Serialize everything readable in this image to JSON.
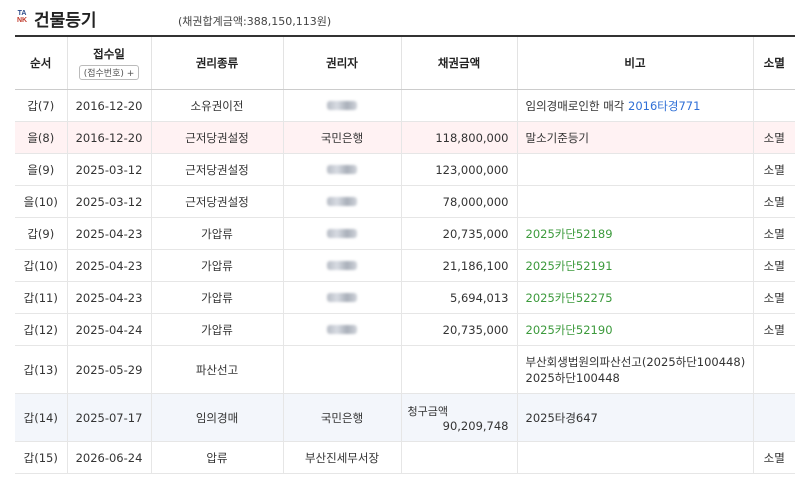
{
  "header": {
    "logo_line1": "TA",
    "logo_line2": "NK",
    "title": "건물등기",
    "total": "(채권합계금액:388,150,113원)"
  },
  "columns": {
    "order": "순서",
    "date": "접수일",
    "date_sub": "(접수번호) +",
    "kind": "권리종류",
    "holder": "권리자",
    "amount": "채권금액",
    "note": "비고",
    "status": "소멸"
  },
  "rows": [
    {
      "order": "갑(7)",
      "date": "2016-12-20",
      "kind": "소유권이전",
      "holder": "",
      "holder_blurred": true,
      "amount": "",
      "note_prefix": "임의경매로인한 매각 ",
      "note_link": "2016타경771",
      "link_color": "blue",
      "status": ""
    },
    {
      "order": "을(8)",
      "date": "2016-12-20",
      "kind": "근저당권설정",
      "holder": "국민은행",
      "holder_blurred": false,
      "amount": "118,800,000",
      "note_prefix": "말소기준등기",
      "note_link": "",
      "link_color": "",
      "status": "소멸"
    },
    {
      "order": "을(9)",
      "date": "2025-03-12",
      "kind": "근저당권설정",
      "holder": "",
      "holder_blurred": true,
      "amount": "123,000,000",
      "note_prefix": "",
      "note_link": "",
      "link_color": "",
      "status": "소멸"
    },
    {
      "order": "을(10)",
      "date": "2025-03-12",
      "kind": "근저당권설정",
      "holder": "",
      "holder_blurred": true,
      "amount": "78,000,000",
      "note_prefix": "",
      "note_link": "",
      "link_color": "",
      "status": "소멸"
    },
    {
      "order": "갑(9)",
      "date": "2025-04-23",
      "kind": "가압류",
      "holder": "",
      "holder_blurred": true,
      "amount": "20,735,000",
      "note_prefix": "",
      "note_link": "2025카단52189",
      "link_color": "green",
      "status": "소멸"
    },
    {
      "order": "갑(10)",
      "date": "2025-04-23",
      "kind": "가압류",
      "holder": "",
      "holder_blurred": true,
      "amount": "21,186,100",
      "note_prefix": "",
      "note_link": "2025카단52191",
      "link_color": "green",
      "status": "소멸"
    },
    {
      "order": "갑(11)",
      "date": "2025-04-23",
      "kind": "가압류",
      "holder": "",
      "holder_blurred": true,
      "amount": "5,694,013",
      "note_prefix": "",
      "note_link": "2025카단52275",
      "link_color": "green",
      "status": "소멸"
    },
    {
      "order": "갑(12)",
      "date": "2025-04-24",
      "kind": "가압류",
      "holder": "",
      "holder_blurred": true,
      "amount": "20,735,000",
      "note_prefix": "",
      "note_link": "2025카단52190",
      "link_color": "green",
      "status": "소멸"
    },
    {
      "order": "갑(13)",
      "date": "2025-05-29",
      "kind": "파산선고",
      "holder": "",
      "holder_blurred": false,
      "amount": "",
      "note_prefix": "부산회생법원의파산선고(2025하단100448)",
      "note_line2": "2025하단100448",
      "note_link": "",
      "link_color": "",
      "status": ""
    },
    {
      "order": "갑(14)",
      "date": "2025-07-17",
      "kind": "임의경매",
      "holder": "국민은행",
      "holder_blurred": false,
      "amount_label": "청구금액",
      "amount": "90,209,748",
      "note_prefix": "2025타경647",
      "note_link": "",
      "link_color": "",
      "status": ""
    },
    {
      "order": "갑(15)",
      "date": "2026-06-24",
      "kind": "압류",
      "holder": "부산진세무서장",
      "holder_blurred": false,
      "amount": "",
      "note_prefix": "",
      "note_link": "",
      "link_color": "",
      "status": "소멸"
    }
  ],
  "colors": {
    "pink_row": "#fff2f3",
    "blue_row": "#f3f6fb",
    "link_blue": "#2f6fd6",
    "link_green": "#3c9a3c"
  }
}
